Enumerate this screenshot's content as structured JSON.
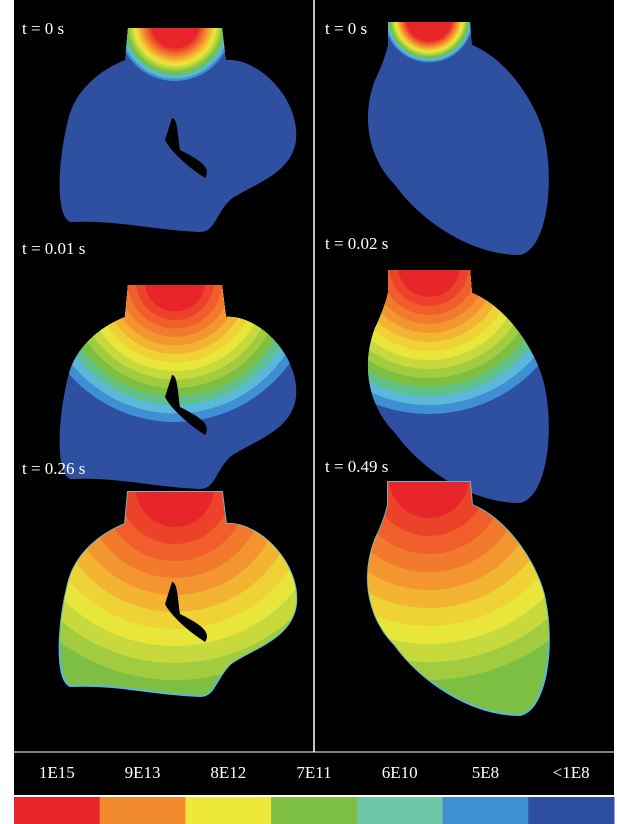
{
  "panels": [
    {
      "label": "t = 0 s"
    },
    {
      "label": "t = 0 s"
    },
    {
      "label": "t = 0.01 s"
    },
    {
      "label": "t = 0.02 s"
    },
    {
      "label": "t = 0.26 s"
    },
    {
      "label": "t = 0.49 s"
    }
  ],
  "legend": [
    {
      "label": "1E15",
      "color": "#e8262a"
    },
    {
      "label": "9E13",
      "color": "#f28a2e"
    },
    {
      "label": "8E12",
      "color": "#ede83a"
    },
    {
      "label": "7E11",
      "color": "#7dbf43"
    },
    {
      "label": "6E10",
      "color": "#6ec7a6"
    },
    {
      "label": "5E8",
      "color": "#3f8fd4"
    },
    {
      "label": "<1E8",
      "color": "#2f4fa0"
    }
  ]
}
